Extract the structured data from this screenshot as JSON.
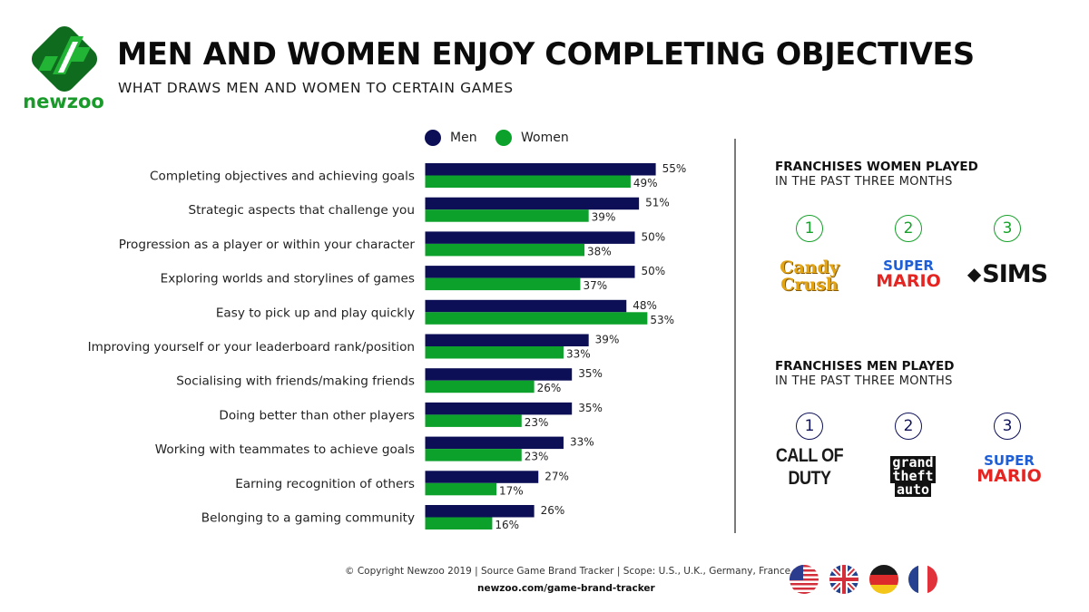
{
  "brand": {
    "name": "newzoo",
    "accent_green": "#1a9a2a",
    "dark_green": "#0f6b1e"
  },
  "header": {
    "title": "MEN AND WOMEN ENJOY COMPLETING OBJECTIVES",
    "subtitle": "WHAT DRAWS MEN AND WOMEN TO CERTAIN GAMES"
  },
  "chart_data": {
    "type": "bar",
    "orientation": "horizontal",
    "title": "What draws men and women to certain games",
    "xlabel": "",
    "ylabel": "",
    "value_suffix": "%",
    "xlim": [
      0,
      60
    ],
    "grid": false,
    "legend_position": "top",
    "categories": [
      "Completing objectives and achieving goals",
      "Strategic aspects that challenge you",
      "Progression as a player or within your character",
      "Exploring worlds and storylines of games",
      "Easy to pick up and play quickly",
      "Improving yourself or your leaderboard rank/position",
      "Socialising with friends/making friends",
      "Doing better than other players",
      "Working with teammates to achieve goals",
      "Earning recognition of others",
      "Belonging to a gaming community"
    ],
    "series": [
      {
        "name": "Men",
        "color": "#0c0f55",
        "values": [
          55,
          51,
          50,
          50,
          48,
          39,
          35,
          35,
          33,
          27,
          26
        ]
      },
      {
        "name": "Women",
        "color": "#0ca12a",
        "values": [
          49,
          39,
          38,
          37,
          53,
          33,
          26,
          23,
          23,
          17,
          16
        ]
      }
    ]
  },
  "legend": [
    {
      "label": "Men",
      "color": "#0c0f55"
    },
    {
      "label": "Women",
      "color": "#0ca12a"
    }
  ],
  "women_panel": {
    "heading": "FRANCHISES WOMEN PLAYED",
    "subheading": "IN THE PAST THREE MONTHS",
    "ranks": [
      {
        "rank": "1",
        "franchise": "Candy Crush",
        "logo_line1": "Candy",
        "logo_line2": "Crush"
      },
      {
        "rank": "2",
        "franchise": "Super Mario",
        "logo_line1": "SUPER",
        "logo_line2": "MARIO"
      },
      {
        "rank": "3",
        "franchise": "The Sims",
        "logo_line1": "SIMS"
      }
    ]
  },
  "men_panel": {
    "heading": "FRANCHISES MEN PLAYED",
    "subheading": "IN THE PAST THREE MONTHS",
    "ranks": [
      {
        "rank": "1",
        "franchise": "Call of Duty",
        "logo_line1": "CALL OF DUTY"
      },
      {
        "rank": "2",
        "franchise": "Grand Theft Auto",
        "logo_line1": "grand",
        "logo_line2": "theft",
        "logo_line3": "auto"
      },
      {
        "rank": "3",
        "franchise": "Super Mario",
        "logo_line1": "SUPER",
        "logo_line2": "MARIO"
      }
    ]
  },
  "footer": {
    "copyright": "© Copyright Newzoo 2019 | Source Game Brand Tracker | Scope: U.S., U.K., Germany, France",
    "url": "newzoo.com/game-brand-tracker",
    "flags": [
      "us-flag",
      "uk-flag",
      "germany-flag",
      "france-flag"
    ]
  }
}
